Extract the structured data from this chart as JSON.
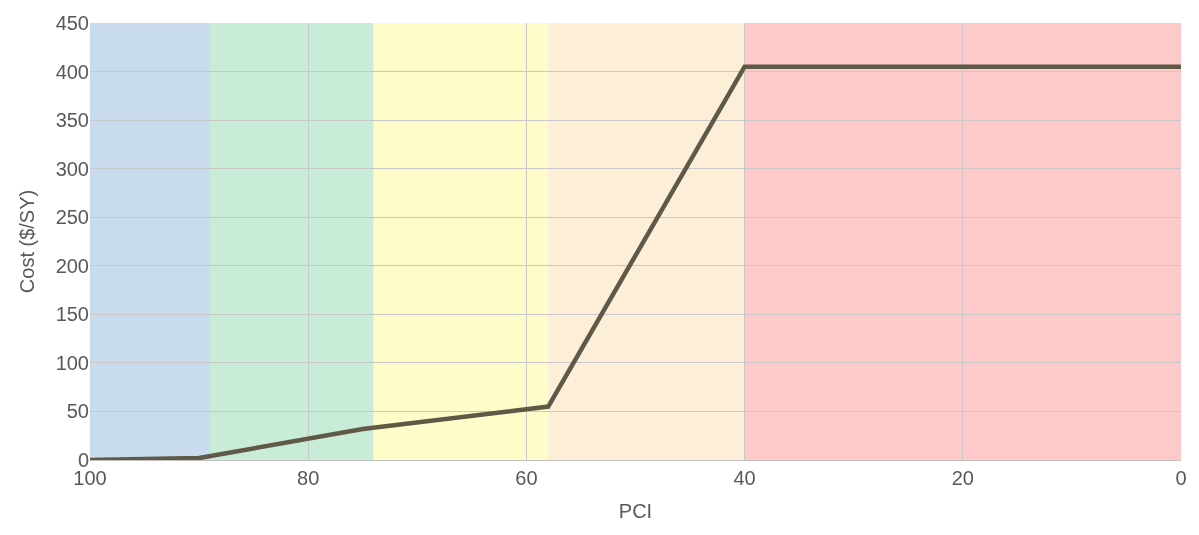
{
  "chart_data": {
    "type": "line",
    "xlabel": "PCI",
    "ylabel": "Cost ($/SY)",
    "x": [
      100,
      90,
      75,
      58,
      40,
      0
    ],
    "series": [
      {
        "color": "#5f5a47",
        "values": [
          0,
          2,
          32,
          55,
          405,
          405
        ]
      }
    ],
    "xlim": [
      100,
      0
    ],
    "xticks": [
      100,
      80,
      60,
      40,
      20,
      0
    ],
    "ylim": [
      0,
      450
    ],
    "yticks": [
      0,
      50,
      100,
      150,
      200,
      250,
      300,
      350,
      400,
      450
    ],
    "bands": [
      {
        "axis": "x",
        "from": 100,
        "to": 89,
        "color": "#c9dcee"
      },
      {
        "axis": "x",
        "from": 89,
        "to": 74,
        "color": "#c9ecd8"
      },
      {
        "axis": "x",
        "from": 74,
        "to": 58,
        "color": "#fefdc9"
      },
      {
        "axis": "x",
        "from": 58,
        "to": 40,
        "color": "#fdeed8"
      },
      {
        "axis": "x",
        "from": 40,
        "to": 0,
        "color": "#fdc9c9"
      }
    ],
    "grid": true,
    "line_style": "solid",
    "marker": "none"
  }
}
